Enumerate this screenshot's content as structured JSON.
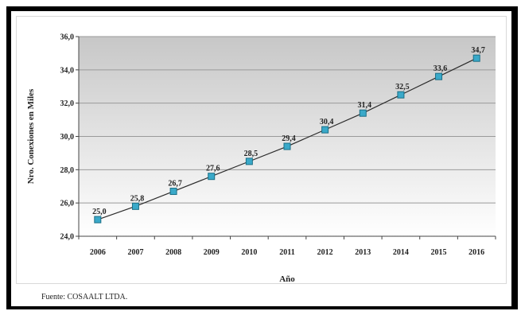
{
  "chart_data": {
    "type": "line",
    "title": "",
    "xlabel": "Año",
    "ylabel": "Nro. Conexiones en Miles",
    "ylim": [
      24.0,
      36.0
    ],
    "yticks": [
      "24,0",
      "26,0",
      "28,0",
      "30,0",
      "32,0",
      "34,0",
      "36,0"
    ],
    "ytick_values": [
      24,
      26,
      28,
      30,
      32,
      34,
      36
    ],
    "categories": [
      "2006",
      "2007",
      "2008",
      "2009",
      "2010",
      "2011",
      "2012",
      "2013",
      "2014",
      "2015",
      "2016"
    ],
    "series": [
      {
        "values": [
          25.0,
          25.8,
          26.7,
          27.6,
          28.5,
          29.4,
          30.4,
          31.4,
          32.5,
          33.6,
          34.7
        ],
        "labels": [
          "25,0",
          "25,8",
          "26,7",
          "27,6",
          "28,5",
          "29,4",
          "30,4",
          "31,4",
          "32,5",
          "33,6",
          "34,7"
        ]
      }
    ],
    "grid": true,
    "legend": "none",
    "colors": {
      "line": "#2b2b2b",
      "marker": "#3aa9c9",
      "marker_edge": "#1b6f86",
      "plot_bg_top": "#c7c7c7",
      "plot_bg_bottom": "#ffffff",
      "grid": "#9a9a9a"
    }
  },
  "footer": {
    "source": "Fuente: COSAALT LTDA."
  }
}
